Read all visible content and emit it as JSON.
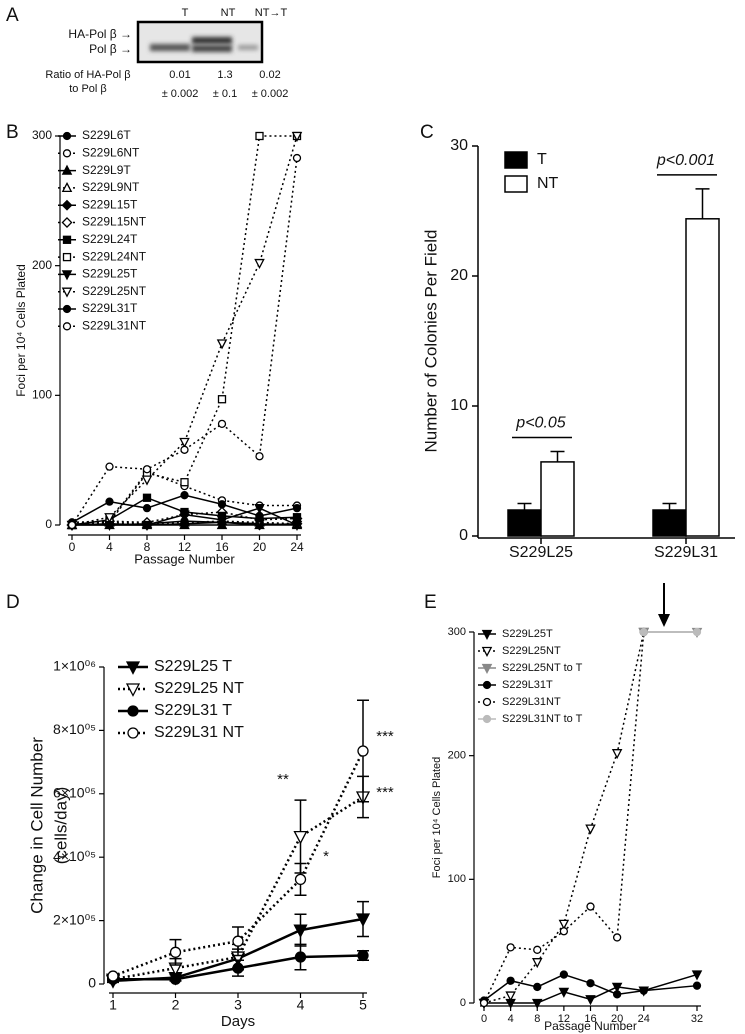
{
  "blot": {
    "panel_label": "A",
    "lanes": [
      "T",
      "NT",
      "NT→T"
    ],
    "bands": [
      "HA-Pol β →",
      "Pol β →"
    ],
    "ratio_label": [
      "Ratio of HA-Pol β",
      "to Pol β"
    ],
    "ratios": [
      0.01,
      1.3,
      0.02
    ],
    "errors": [
      "± 0.002",
      "± 0.1",
      "± 0.002"
    ]
  },
  "chart_data": [
    {
      "type": "line",
      "panel_label": "B",
      "xlabel": "Passage Number",
      "ylabel": [
        "Foci per 10⁴ Cells Plated"
      ],
      "x": [
        0,
        4,
        8,
        12,
        16,
        20,
        24
      ],
      "xlim": [
        0,
        24
      ],
      "xticks": [
        0,
        4,
        8,
        12,
        16,
        20,
        24
      ],
      "ylim": [
        0,
        300
      ],
      "yticks": [
        0,
        100,
        200,
        300
      ],
      "series": [
        {
          "name": "S229L6T",
          "color": "#000000",
          "marker": "circle",
          "filled": true,
          "line": "solid",
          "values": [
            1,
            0,
            1,
            3,
            2,
            1,
            0
          ]
        },
        {
          "name": "S229L6NT",
          "color": "#000000",
          "marker": "circle",
          "filled": false,
          "line": "dotted",
          "values": [
            2,
            3,
            41,
            30,
            19,
            15,
            15
          ]
        },
        {
          "name": "S229L9T",
          "color": "#000000",
          "marker": "triangle-up",
          "filled": true,
          "line": "solid",
          "values": [
            0,
            0,
            0,
            0,
            0,
            0,
            0
          ]
        },
        {
          "name": "S229L9NT",
          "color": "#000000",
          "marker": "triangle-up",
          "filled": false,
          "line": "dotted",
          "values": [
            0,
            2,
            1,
            2,
            3,
            2,
            1
          ]
        },
        {
          "name": "S229L15T",
          "color": "#000000",
          "marker": "diamond",
          "filled": true,
          "line": "solid",
          "values": [
            0,
            1,
            0,
            1,
            2,
            0,
            1
          ]
        },
        {
          "name": "S229L15NT",
          "color": "#000000",
          "marker": "diamond",
          "filled": false,
          "line": "dotted",
          "values": [
            0,
            3,
            2,
            8,
            10,
            4,
            5
          ]
        },
        {
          "name": "S229L24T",
          "color": "#000000",
          "marker": "square",
          "filled": true,
          "line": "solid",
          "values": [
            0,
            4,
            21,
            10,
            7,
            5,
            6
          ]
        },
        {
          "name": "S229L24NT",
          "color": "#000000",
          "marker": "square",
          "filled": false,
          "line": "dotted",
          "values": [
            0,
            2,
            40,
            33,
            97,
            300,
            300
          ]
        },
        {
          "name": "S229L25T",
          "color": "#000000",
          "marker": "triangle-down",
          "filled": true,
          "line": "solid",
          "values": [
            0,
            0,
            0,
            8,
            4,
            13,
            0
          ]
        },
        {
          "name": "S229L25NT",
          "color": "#000000",
          "marker": "triangle-down",
          "filled": false,
          "line": "dotted",
          "values": [
            0,
            6,
            35,
            64,
            140,
            202,
            300
          ]
        },
        {
          "name": "S229L31T",
          "color": "#000000",
          "marker": "circle",
          "filled": true,
          "line": "solid",
          "values": [
            2,
            18,
            13,
            23,
            16,
            7,
            13
          ]
        },
        {
          "name": "S229L31NT",
          "color": "#000000",
          "marker": "circle",
          "filled": false,
          "line": "dotted",
          "values": [
            0,
            45,
            43,
            58,
            78,
            53,
            283
          ]
        }
      ]
    },
    {
      "type": "bar",
      "panel_label": "C",
      "ylabel": [
        "Number of Colonies Per Field"
      ],
      "categories": [
        "S229L25",
        "S229L31"
      ],
      "ylim": [
        0,
        30
      ],
      "yticks": [
        0,
        10,
        20,
        30
      ],
      "series": [
        {
          "name": "T",
          "color": "#000000",
          "values": [
            2.0,
            2.0
          ],
          "errors": [
            0.5,
            0.5
          ]
        },
        {
          "name": "NT",
          "color": "#ffffff",
          "values": [
            5.7,
            24.4
          ],
          "errors": [
            0.8,
            2.3
          ]
        }
      ],
      "annotations": [
        "p<0.05",
        "p<0.001"
      ]
    },
    {
      "type": "line",
      "panel_label": "D",
      "xlabel": "Days",
      "ylabel": [
        "Change in Cell Number",
        "(cells/day)"
      ],
      "x": [
        1,
        2,
        3,
        4,
        5
      ],
      "xlim": [
        1,
        5
      ],
      "xticks": [
        1,
        2,
        3,
        4,
        5
      ],
      "ylim": [
        0,
        1000000
      ],
      "yticks": [
        0,
        {
          "value": 200000,
          "label": "2×10⁰⁵"
        },
        {
          "value": 400000,
          "label": "4×10⁰⁵"
        },
        {
          "value": 600000,
          "label": "6×10⁰⁵"
        },
        {
          "value": 800000,
          "label": "8×10⁰⁵"
        },
        {
          "value": 1000000,
          "label": "1×10⁰⁶"
        }
      ],
      "series": [
        {
          "name": "S229L25 T",
          "color": "#000000",
          "marker": "triangle-down",
          "filled": true,
          "line": "solid",
          "values": [
            10000,
            20000,
            80000,
            170000,
            205000
          ],
          "errors": [
            5000,
            10000,
            30000,
            50000,
            55000
          ]
        },
        {
          "name": "S229L25 NT",
          "color": "#000000",
          "marker": "triangle-down",
          "filled": false,
          "line": "dotted",
          "values": [
            15000,
            50000,
            85000,
            465000,
            590000
          ],
          "errors": [
            5000,
            30000,
            40000,
            115000,
            65000
          ]
        },
        {
          "name": "S229L31 T",
          "color": "#000000",
          "marker": "circle",
          "filled": true,
          "line": "solid",
          "values": [
            15000,
            15000,
            50000,
            85000,
            90000
          ],
          "errors": [
            5000,
            5000,
            25000,
            40000,
            15000
          ]
        },
        {
          "name": "S229L31 NT",
          "color": "#000000",
          "marker": "circle",
          "filled": false,
          "line": "dotted",
          "values": [
            25000,
            100000,
            135000,
            330000,
            735000
          ],
          "errors": [
            5000,
            40000,
            45000,
            50000,
            160000
          ]
        }
      ],
      "annotations": [
        "**",
        "*",
        "***",
        "***"
      ]
    },
    {
      "type": "line",
      "panel_label": "E",
      "xlabel": "Passage Number",
      "ylabel": [
        "Foci per 10⁴ Cells Plated"
      ],
      "x": [
        0,
        4,
        8,
        12,
        16,
        20,
        24,
        32
      ],
      "xlim": [
        0,
        32
      ],
      "xticks": [
        0,
        4,
        8,
        12,
        16,
        20,
        24,
        32
      ],
      "ylim": [
        0,
        300
      ],
      "yticks": [
        0,
        100,
        200,
        300
      ],
      "series": [
        {
          "name": "S229L25T",
          "color": "#000000",
          "marker": "triangle-down",
          "filled": true,
          "line": "solid",
          "values": [
            0,
            0,
            0,
            9,
            3,
            13,
            10,
            23
          ]
        },
        {
          "name": "S229L25NT",
          "color": "#000000",
          "marker": "triangle-down",
          "filled": false,
          "line": "dotted",
          "values": [
            0,
            6,
            33,
            64,
            141,
            202,
            300,
            null
          ]
        },
        {
          "name": "S229L25NT to T",
          "color": "#888888",
          "marker": "triangle-down",
          "filled": true,
          "line": "solid",
          "values": [
            null,
            null,
            null,
            null,
            null,
            null,
            300,
            300
          ]
        },
        {
          "name": "S229L31T",
          "color": "#000000",
          "marker": "circle",
          "filled": true,
          "line": "solid",
          "values": [
            2,
            18,
            13,
            23,
            16,
            7,
            10,
            14
          ]
        },
        {
          "name": "S229L31NT",
          "color": "#000000",
          "marker": "circle",
          "filled": false,
          "line": "dotted",
          "values": [
            0,
            45,
            43,
            58,
            78,
            53,
            300,
            null
          ]
        },
        {
          "name": "S229L31NT to T",
          "color": "#bbbbbb",
          "marker": "circle",
          "filled": true,
          "line": "solid",
          "values": [
            null,
            null,
            null,
            null,
            null,
            null,
            300,
            300
          ]
        }
      ]
    }
  ]
}
